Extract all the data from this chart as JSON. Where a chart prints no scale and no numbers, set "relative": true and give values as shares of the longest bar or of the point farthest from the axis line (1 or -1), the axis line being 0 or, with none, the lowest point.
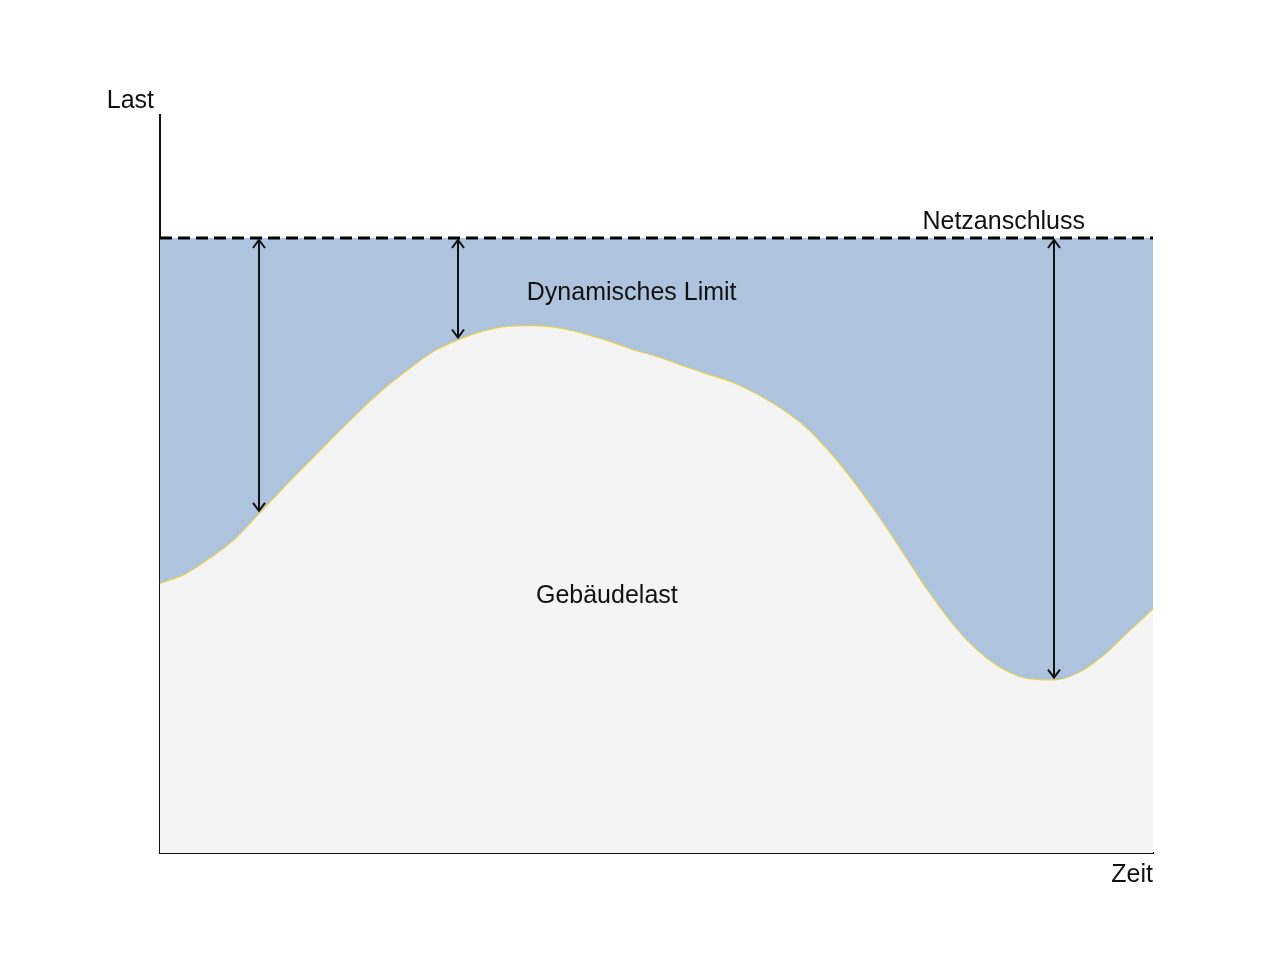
{
  "chart_data": {
    "type": "area",
    "relative": true,
    "xlabel": "Zeit",
    "ylabel": "Last",
    "categories": [
      null,
      null,
      null,
      null,
      null,
      null,
      null,
      null,
      null,
      null,
      null,
      null,
      null,
      null,
      null,
      null,
      null,
      null,
      null,
      null,
      null,
      null,
      null,
      null,
      null,
      null,
      null,
      null,
      null,
      null,
      null,
      null,
      null,
      null,
      null,
      null,
      null,
      null,
      null,
      null,
      null
    ],
    "series": [
      {
        "name": "Gebäudelast",
        "color": "#f4f4f4",
        "values": [
          0.439,
          0.454,
          0.48,
          0.511,
          0.553,
          0.596,
          0.637,
          0.678,
          0.718,
          0.755,
          0.787,
          0.816,
          0.835,
          0.849,
          0.857,
          0.858,
          0.855,
          0.846,
          0.834,
          0.82,
          0.808,
          0.794,
          0.78,
          0.767,
          0.748,
          0.724,
          0.694,
          0.652,
          0.602,
          0.546,
          0.485,
          0.424,
          0.37,
          0.328,
          0.299,
          0.284,
          0.282,
          0.294,
          0.322,
          0.36,
          0.398
        ]
      },
      {
        "name": "Dynamisches Limit",
        "color": "#aec4de",
        "values": [
          1,
          1,
          1,
          1,
          1,
          1,
          1,
          1,
          1,
          1,
          1,
          1,
          1,
          1,
          1,
          1,
          1,
          1,
          1,
          1,
          1,
          1,
          1,
          1,
          1,
          1,
          1,
          1,
          1,
          1,
          1,
          1,
          1,
          1,
          1,
          1,
          1,
          1,
          1,
          1,
          1
        ]
      }
    ],
    "ref_lines": [
      {
        "axis": "y",
        "value": 1,
        "label": "Netzanschluss",
        "line_style": "dashed",
        "color": "#000000"
      }
    ]
  }
}
